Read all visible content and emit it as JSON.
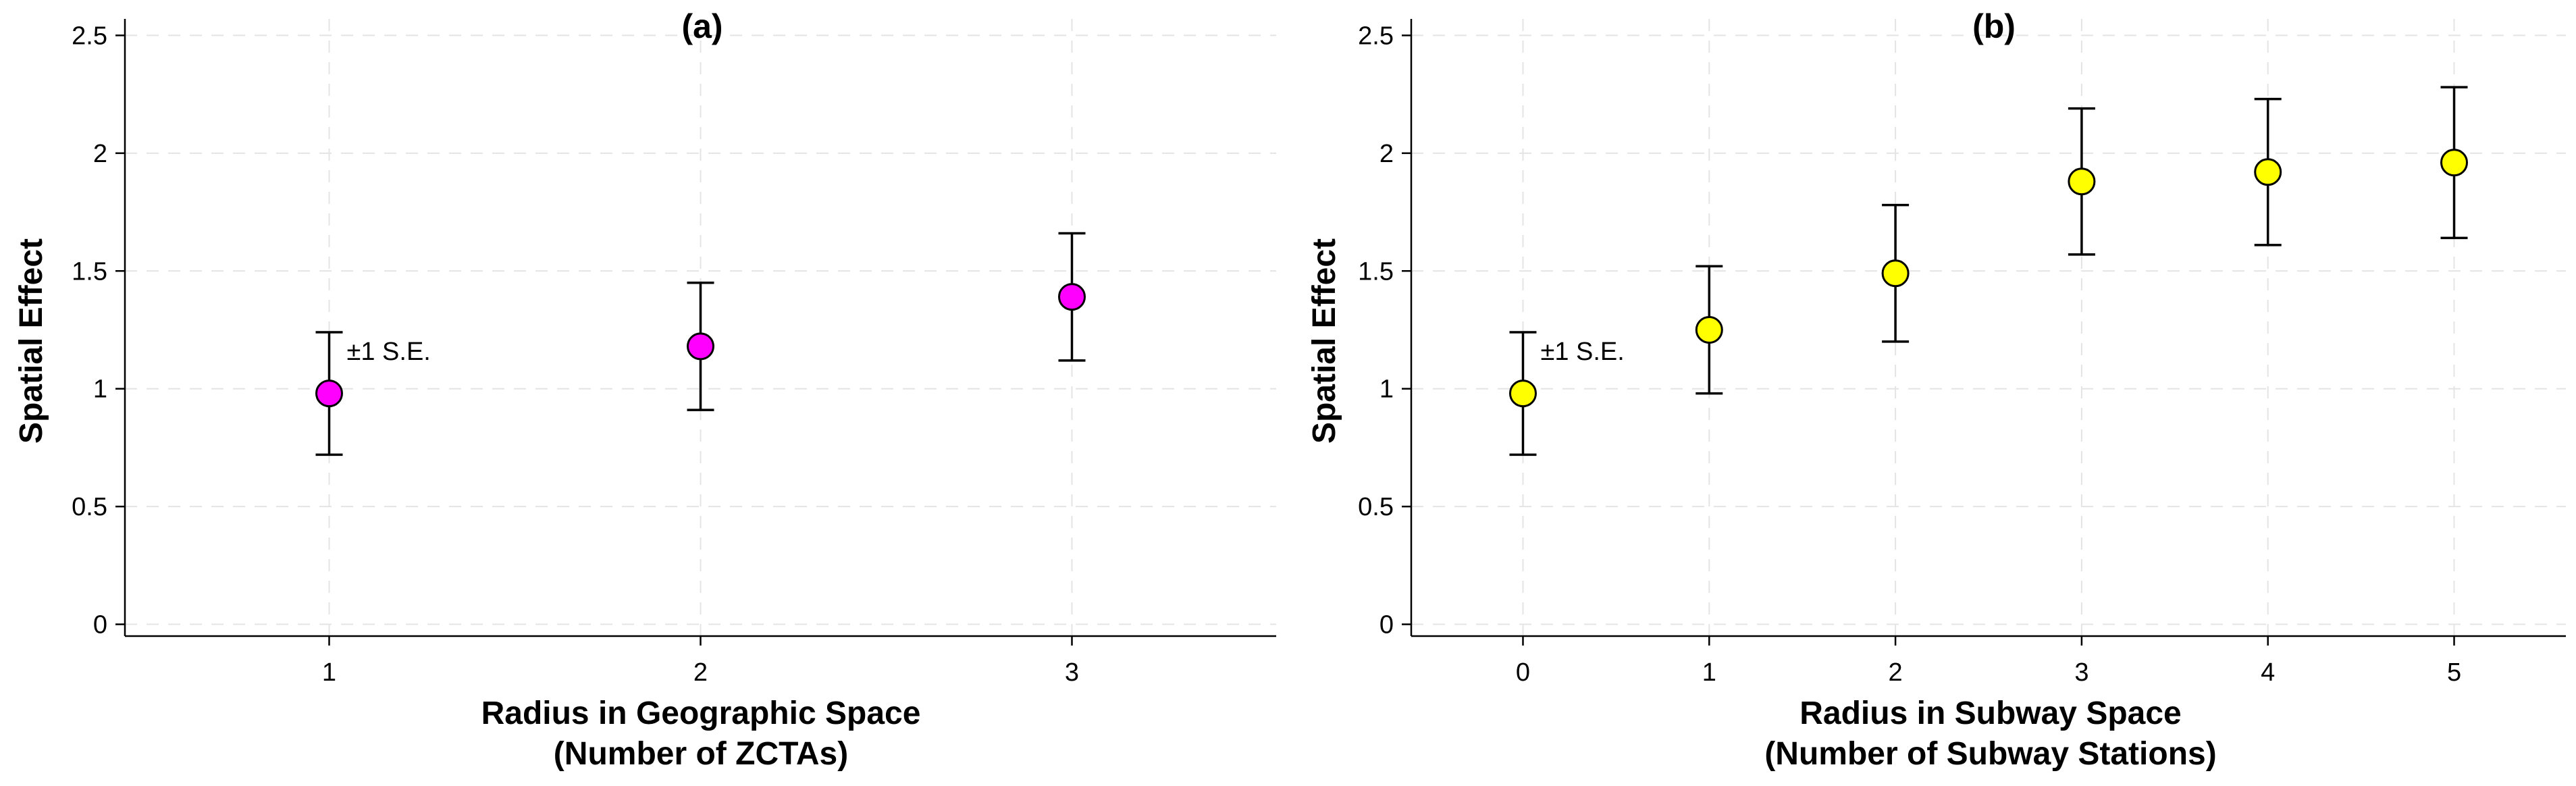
{
  "chart_data": [
    {
      "type": "scatter",
      "panel_label": "(a)",
      "x": [
        1,
        2,
        3
      ],
      "y": [
        0.98,
        1.18,
        1.39
      ],
      "se": [
        0.26,
        0.27,
        0.27
      ],
      "xlim": [
        0.45,
        3.55
      ],
      "ylim": [
        -0.05,
        2.57
      ],
      "xticks": [
        "1",
        "2",
        "3"
      ],
      "yticks": [
        "0",
        "0.5",
        "1",
        "1.5",
        "2",
        "2.5"
      ],
      "xlabel_line1": "Radius in Geographic Space",
      "xlabel_line2": "(Number of ZCTAs)",
      "ylabel": "Spatial Effect",
      "annotation": "±1 S.E.",
      "marker_color": "#ff00ff",
      "grid": true
    },
    {
      "type": "scatter",
      "panel_label": "(b)",
      "x": [
        0,
        1,
        2,
        3,
        4,
        5
      ],
      "y": [
        0.98,
        1.25,
        1.49,
        1.88,
        1.92,
        1.96
      ],
      "se": [
        0.26,
        0.27,
        0.29,
        0.31,
        0.31,
        0.32
      ],
      "xlim": [
        -0.6,
        5.6
      ],
      "ylim": [
        -0.05,
        2.57
      ],
      "xticks": [
        "0",
        "1",
        "2",
        "3",
        "4",
        "5"
      ],
      "yticks": [
        "0",
        "0.5",
        "1",
        "1.5",
        "2",
        "2.5"
      ],
      "xlabel_line1": "Radius in Subway Space",
      "xlabel_line2": "(Number of Subway Stations)",
      "ylabel": "Spatial Effect",
      "annotation": "±1 S.E.",
      "marker_color": "#ffff00",
      "grid": true
    }
  ]
}
